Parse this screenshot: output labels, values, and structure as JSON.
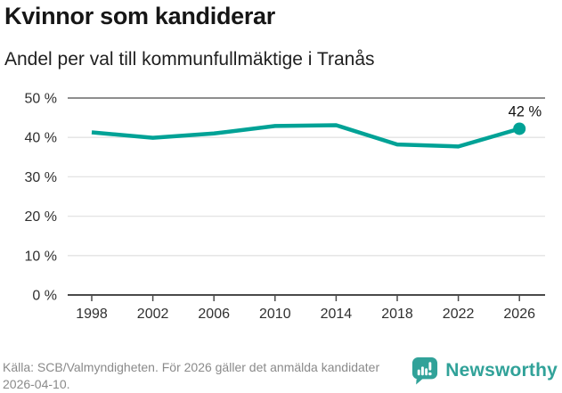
{
  "header": {
    "title": "Kvinnor som kandiderar",
    "subtitle": "Andel per val till kommunfullmäktige i Tranås"
  },
  "chart_data": {
    "type": "line",
    "categories": [
      "1998",
      "2002",
      "2006",
      "2010",
      "2014",
      "2018",
      "2022",
      "2026"
    ],
    "values": [
      41.3,
      39.9,
      41.0,
      42.9,
      43.1,
      38.2,
      37.7,
      42.2
    ],
    "unit": "%",
    "title": "Kvinnor som kandiderar",
    "subtitle": "Andel per val till kommunfullmäktige i Tranås",
    "xlabel": "",
    "ylabel": "",
    "ylim": [
      0,
      50
    ],
    "y_tick_step": 10,
    "y_tick_labels": [
      "0 %",
      "10 %",
      "20 %",
      "30 %",
      "40 %",
      "50 %"
    ],
    "grid": "horizontal",
    "legend": "none",
    "line_color": "#00a296",
    "last_point_marker": true,
    "annotation": {
      "category": "2026",
      "label": "42 %"
    }
  },
  "footer": {
    "source": "Källa: SCB/Valmyndigheten. För 2026 gäller det anmälda kandidater 2026-04-10.",
    "brand": "Newsworthy",
    "brand_color": "#31a299"
  },
  "colors": {
    "accent_teal": "#00a296",
    "grid_light": "#e3e3e3",
    "grid_top": "#8e8e8e",
    "axis_dark": "#4a4a4a",
    "tick_text": "#303030",
    "source_text": "#8a8a8a"
  }
}
